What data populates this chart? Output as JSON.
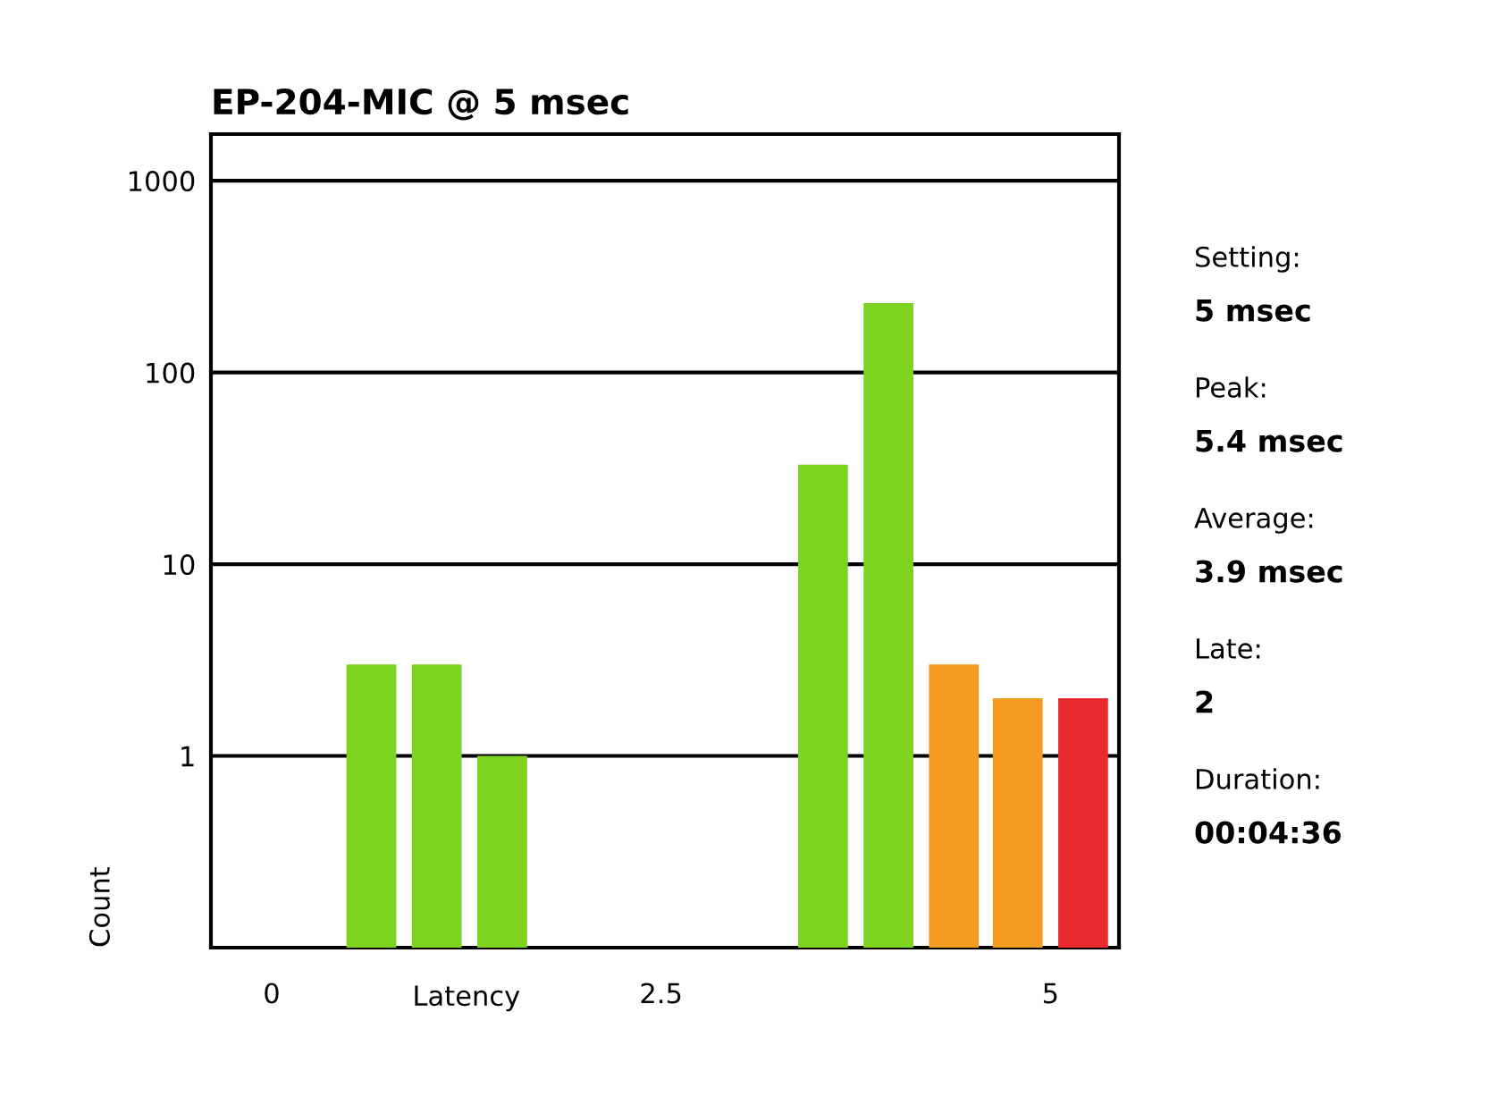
{
  "chart_data": {
    "type": "bar",
    "title": "EP-204-MIC @ 5 msec",
    "xlabel": "Latency",
    "ylabel": "Count",
    "x": [
      0.64,
      1.06,
      1.48,
      3.54,
      3.96,
      4.38,
      4.79,
      5.21
    ],
    "values": [
      3,
      3,
      1,
      33,
      230,
      3,
      2,
      2
    ],
    "colors": [
      "#7ed321",
      "#7ed321",
      "#7ed321",
      "#7ed321",
      "#7ed321",
      "#f39c21",
      "#f39c21",
      "#e8292e"
    ],
    "log": "y",
    "ylim": [
      0.1,
      1750
    ],
    "yticks": [
      1,
      10,
      100,
      1000
    ],
    "xlim": [
      -0.39,
      5.44
    ],
    "xticks": [
      0,
      2.5,
      5
    ],
    "grid": "y",
    "annotations": [
      "Setting:",
      "5 msec",
      "Peak:",
      "5.4 msec",
      "Average:",
      "3.9 msec",
      "Late:",
      "2",
      "Duration:",
      "00:04:36"
    ]
  }
}
